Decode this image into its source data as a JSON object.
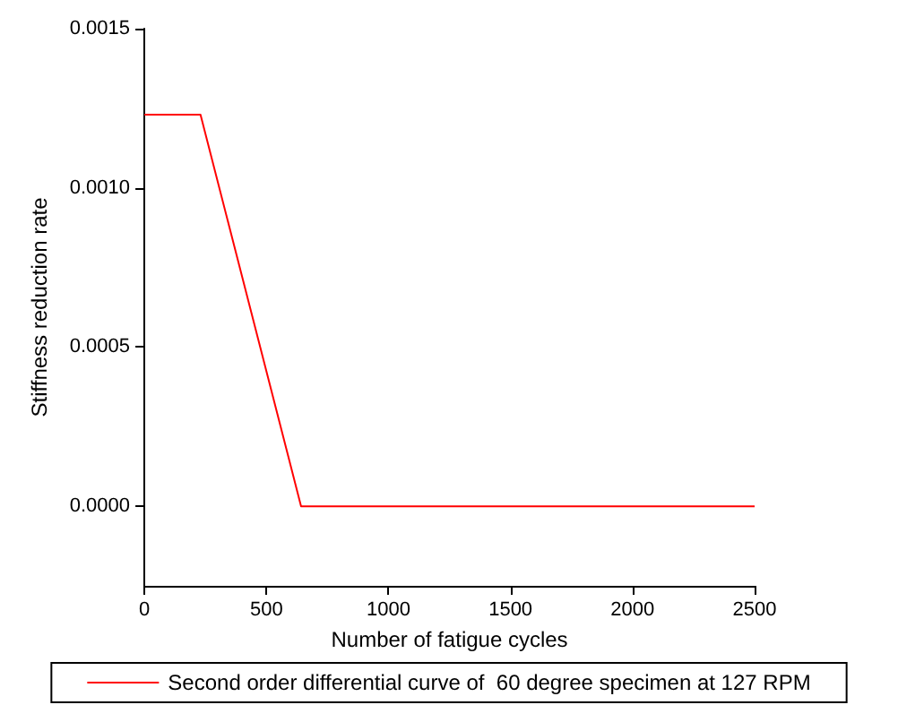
{
  "chart_data": {
    "type": "line",
    "xlabel": "Number of fatigue cycles",
    "ylabel": "Stiffness reduction rate",
    "x": [
      0,
      230,
      642,
      2500
    ],
    "series": [
      {
        "name": "Second order differential curve of  60 degree specimen at 127 RPM",
        "color": "#ff0000",
        "values": [
          0.00123,
          0.00123,
          0,
          0
        ]
      }
    ],
    "xlim": [
      0,
      2500
    ],
    "xticks": [
      0,
      500,
      1000,
      1500,
      2000,
      2500
    ],
    "ylim": [
      -0.00025,
      0.0015
    ],
    "yticks": [
      {
        "value": 0,
        "label": "0.0000"
      },
      {
        "value": 0.0005,
        "label": "0.0005"
      },
      {
        "value": 0.001,
        "label": "0.0010"
      },
      {
        "value": 0.0015,
        "label": "0.0015"
      }
    ],
    "grid": false,
    "legend": "bottom",
    "marker": "none",
    "line_style": "solid"
  }
}
